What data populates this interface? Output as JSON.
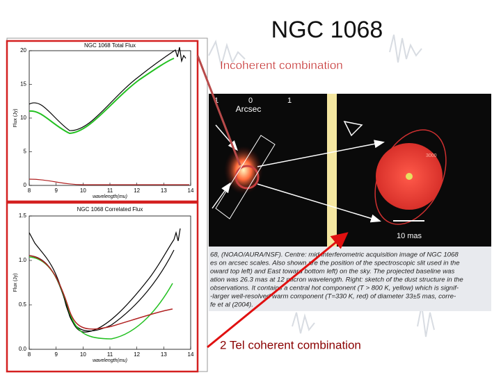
{
  "title": "NGC 1068",
  "labels": {
    "incoherent": "Incoherent combination",
    "coherent": "2 Tel coherent combination"
  },
  "plots": [
    {
      "title": "NGC 1068 Total Flux",
      "xlabel": "wavelength(mu)",
      "ylabel": "Flux (Jy)",
      "yticks": [
        "0",
        "5",
        "10",
        "15",
        "20"
      ],
      "xticks": [
        "8",
        "9",
        "10",
        "11",
        "12",
        "13",
        "14"
      ]
    },
    {
      "title": "NGC 1068 Correlated Flux",
      "xlabel": "wavelength(mu)",
      "ylabel": "Flux (Jy)",
      "yticks": [
        "0.0",
        "0.5",
        "1.0",
        "1.5"
      ],
      "xticks": [
        "8",
        "9",
        "10",
        "11",
        "12",
        "13",
        "14"
      ]
    }
  ],
  "image": {
    "axis_label": "Arcsec",
    "ticks": [
      "1",
      "0",
      "1"
    ],
    "scale": "10 mas",
    "component": "3000"
  },
  "caption": [
    "68, (NOAO/AURA/NSF). Centre: mid-interferometric acquisition image of NGC 1068",
    "es on arcsec scales. Also shown are the position of the spectroscopic slit used in the",
    "oward top left) and East toward bottom left) on the sky. The projected baseline was",
    "ation was 26.3 mas at 12 micron wavelength. Right: sketch of the dust structure in the",
    "observations. It contains  a central hot component (T > 800 K, yellow) which is signif-",
    "-larger well-resolved warm component (T=330 K, red) of diameter 33±5 mas, corre-",
    "fe et al (2004)."
  ]
}
